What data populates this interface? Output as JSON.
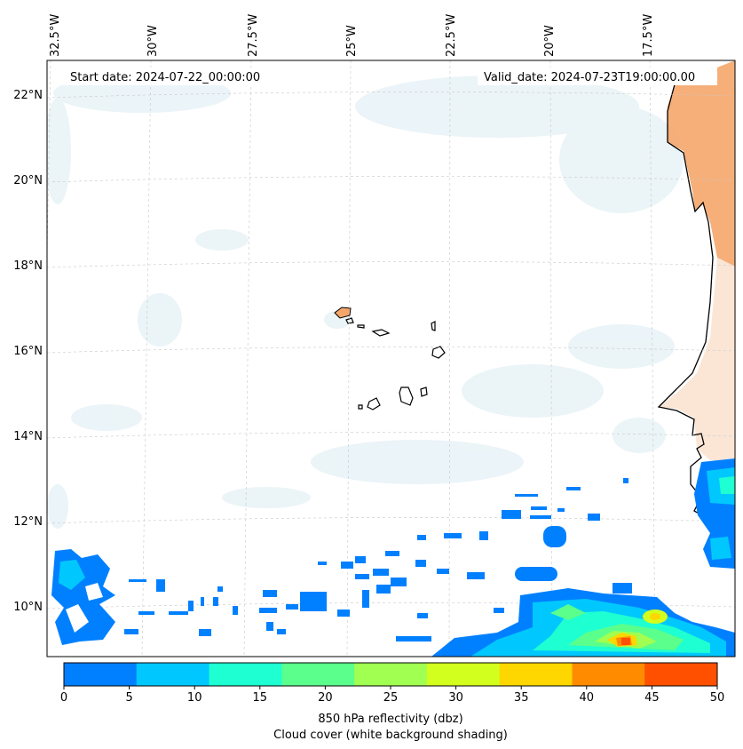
{
  "header": {
    "start_date": "Start date: 2024-07-22_00:00:00",
    "valid_date": "Valid_date: 2024-07-23T19:00:00.00"
  },
  "axes": {
    "lon_labels": [
      "32.5°W",
      "30°W",
      "27.5°W",
      "25°W",
      "22.5°W",
      "20°W",
      "17.5°W"
    ],
    "lat_labels": [
      "22°N",
      "20°N",
      "18°N",
      "16°N",
      "14°N",
      "12°N",
      "10°N"
    ]
  },
  "colorbar": {
    "ticks": [
      "0",
      "5",
      "10",
      "15",
      "20",
      "25",
      "30",
      "35",
      "40",
      "45",
      "50"
    ],
    "colors": [
      "#0080ff",
      "#00c8ff",
      "#1effd2",
      "#5aff8c",
      "#a0ff50",
      "#d2ff1e",
      "#ffd700",
      "#ff8c00",
      "#ff5000"
    ],
    "label_line1": "850 hPa reflectivity (dbz)",
    "label_line2": "Cloud cover (white background shading)"
  }
}
